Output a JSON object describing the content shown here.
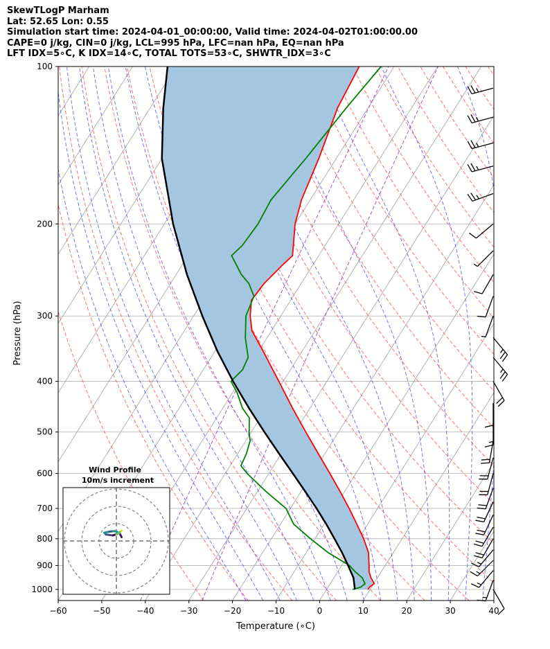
{
  "chart_data": {
    "type": "skewt-logp",
    "title_lines": [
      "SkewTLogP Marham",
      "Lat: 52.65   Lon: 0.55",
      "Simulation start time: 2024-04-01_00:00:00, Valid time: 2024-04-02T01:00:00.00",
      "CAPE=0 j/kg, CIN=0 j/kg, LCL=995 hPa, LFC=nan hPa, EQ=nan hPa",
      "LFT IDX=5∘C, K IDX=14∘C, TOTAL TOTS=53∘C, SHWTR_IDX=3∘C"
    ],
    "xlabel": "Temperature (∘C)",
    "ylabel": "Pressure (hPa)",
    "xlim": [
      -60,
      40
    ],
    "ylim": [
      1050,
      100
    ],
    "x_ticks": [
      -60,
      -50,
      -40,
      -30,
      -20,
      -10,
      0,
      10,
      20,
      30,
      40
    ],
    "x_tick_labels": [
      "−60",
      "−50",
      "−40",
      "−30",
      "−20",
      "−10",
      "0",
      "10",
      "20",
      "30",
      "40"
    ],
    "y_ticks": [
      1000,
      900,
      800,
      700,
      600,
      500,
      400,
      300,
      200,
      100
    ],
    "y_tick_labels": [
      "1000",
      "900",
      "800",
      "700",
      "600",
      "500",
      "400",
      "300",
      "200",
      "100"
    ],
    "colors": {
      "temperature": "#ff0000",
      "dewpoint": "#008000",
      "parcel": "#000000",
      "shade": "#a4c6e0",
      "dry_adiabat": "#ff5555",
      "moist_adiabat": "#4444ff",
      "mixing_ratio": "#9933cc",
      "isotherm": "#a0a0a0"
    },
    "series": [
      {
        "name": "temperature",
        "pressure": [
          1000,
          990,
          975,
          950,
          925,
          900,
          850,
          800,
          750,
          700,
          650,
          600,
          550,
          500,
          450,
          400,
          350,
          320,
          300,
          280,
          260,
          240,
          230,
          200,
          180,
          150,
          120,
          100
        ],
        "values": [
          9.5,
          9.5,
          10.1,
          8.5,
          7.2,
          6.3,
          4.3,
          1.2,
          -2.5,
          -6.5,
          -11.0,
          -16.0,
          -21.5,
          -27.5,
          -34.0,
          -41.0,
          -49.0,
          -54.5,
          -57.0,
          -59.0,
          -58.5,
          -57.0,
          -56.0,
          -60.0,
          -62.0,
          -64.0,
          -67.0,
          -68.0
        ]
      },
      {
        "name": "dewpoint",
        "pressure": [
          1000,
          990,
          975,
          950,
          925,
          900,
          850,
          800,
          750,
          700,
          650,
          600,
          580,
          550,
          520,
          500,
          470,
          450,
          420,
          400,
          380,
          360,
          330,
          300,
          275,
          260,
          250,
          230,
          220,
          200,
          180,
          150,
          120,
          100
        ],
        "values": [
          6.0,
          7.5,
          8.0,
          6.5,
          4.0,
          1.8,
          -5.0,
          -11.0,
          -17.0,
          -21.0,
          -28.0,
          -35.0,
          -37.5,
          -38.0,
          -39.0,
          -40.5,
          -42.5,
          -45.5,
          -49.0,
          -52.0,
          -51.0,
          -51.5,
          -55.0,
          -58.0,
          -59.0,
          -62.0,
          -65.0,
          -70.0,
          -69.0,
          -68.5,
          -69.0,
          -67.0,
          -65.0,
          -63.0
        ]
      },
      {
        "name": "parcel",
        "pressure": [
          1000,
          995,
          950,
          900,
          850,
          800,
          750,
          700,
          650,
          600,
          550,
          500,
          450,
          400,
          350,
          300,
          250,
          200,
          150,
          120,
          100
        ],
        "values": [
          6.5,
          6.3,
          4.5,
          1.5,
          -1.8,
          -5.5,
          -9.5,
          -14.0,
          -19.0,
          -24.5,
          -30.5,
          -37.0,
          -44.0,
          -51.5,
          -59.5,
          -68.0,
          -77.5,
          -88.0,
          -100.0,
          -107.0,
          -112.0
        ]
      }
    ],
    "wind_barbs": {
      "pressure": [
        1000,
        960,
        920,
        880,
        840,
        800,
        760,
        720,
        680,
        640,
        600,
        560,
        520,
        480,
        440,
        400,
        360,
        330,
        300,
        275,
        250,
        225,
        200,
        175,
        155,
        140,
        125,
        110
      ],
      "speed_kt": [
        10,
        15,
        15,
        15,
        15,
        20,
        20,
        20,
        20,
        20,
        20,
        20,
        20,
        15,
        10,
        20,
        25,
        25,
        5,
        10,
        10,
        5,
        10,
        25,
        25,
        25,
        25,
        25
      ],
      "direction_deg": [
        150,
        200,
        220,
        225,
        220,
        210,
        210,
        205,
        205,
        200,
        195,
        195,
        190,
        180,
        180,
        150,
        140,
        140,
        200,
        200,
        210,
        225,
        230,
        250,
        255,
        255,
        255,
        255
      ]
    },
    "inset": {
      "title": "Wind Profile",
      "subtitle": "10m/s increment",
      "rings_ms": [
        10,
        20,
        30
      ],
      "hodograph_u": [
        3,
        2,
        0.5,
        -1,
        -3,
        -5,
        -7,
        -6,
        -2,
        1,
        3,
        2,
        0
      ],
      "hodograph_v": [
        -1,
        1,
        2,
        2.5,
        2.3,
        2,
        1.5,
        0.5,
        0,
        1,
        2.8,
        2,
        0.5
      ]
    }
  }
}
